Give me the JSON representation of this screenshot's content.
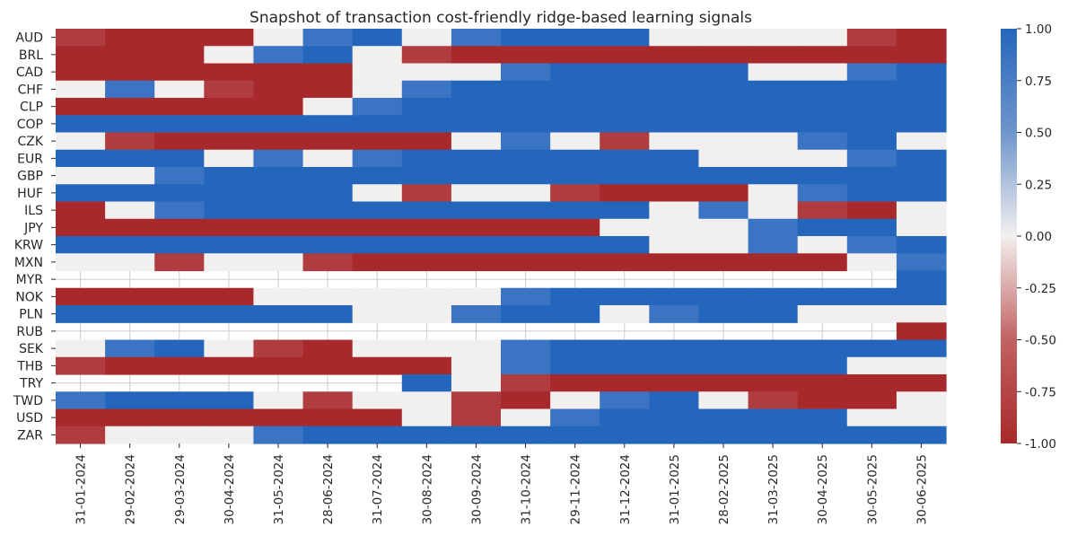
{
  "chart_data": {
    "type": "heatmap",
    "title": "Snapshot of transaction cost-friendly ridge-based learning signals",
    "xlabel": "",
    "ylabel": "",
    "x": [
      "31-01-2024",
      "29-02-2024",
      "29-03-2024",
      "30-04-2024",
      "31-05-2024",
      "28-06-2024",
      "31-07-2024",
      "30-08-2024",
      "30-09-2024",
      "31-10-2024",
      "29-11-2024",
      "31-12-2024",
      "31-01-2025",
      "28-02-2025",
      "31-03-2025",
      "30-04-2025",
      "30-05-2025",
      "30-06-2025"
    ],
    "y": [
      "AUD",
      "BRL",
      "CAD",
      "CHF",
      "CLP",
      "COP",
      "CZK",
      "EUR",
      "GBP",
      "HUF",
      "ILS",
      "JPY",
      "KRW",
      "MXN",
      "MYR",
      "NOK",
      "PLN",
      "RUB",
      "SEK",
      "THB",
      "TRY",
      "TWD",
      "USD",
      "ZAR"
    ],
    "values": [
      [
        -0.9,
        -1,
        -1,
        -1,
        0,
        0.9,
        1,
        0,
        0.9,
        1,
        1,
        1,
        0,
        0,
        0,
        0,
        -0.9,
        -1
      ],
      [
        -1,
        -1,
        -1,
        0,
        0.9,
        1,
        0,
        -0.9,
        -1,
        -1,
        -1,
        -1,
        -1,
        -1,
        -1,
        -1,
        -1,
        -1
      ],
      [
        -1,
        -1,
        -1,
        -1,
        -1,
        -1,
        0,
        0,
        0,
        0.9,
        1,
        1,
        1,
        1,
        0,
        0,
        0.9,
        1
      ],
      [
        0,
        0.9,
        0,
        -0.9,
        -1,
        -1,
        0,
        0.9,
        1,
        1,
        1,
        1,
        1,
        1,
        1,
        1,
        1,
        1
      ],
      [
        -1,
        -1,
        -1,
        -1,
        -1,
        0,
        0.9,
        1,
        1,
        1,
        1,
        1,
        1,
        1,
        1,
        1,
        1,
        1
      ],
      [
        1,
        1,
        1,
        1,
        1,
        1,
        1,
        1,
        1,
        1,
        1,
        1,
        1,
        1,
        1,
        1,
        1,
        1
      ],
      [
        0,
        -0.9,
        -1,
        -1,
        -1,
        -1,
        -1,
        -1,
        0,
        0.9,
        0,
        -0.9,
        0,
        0,
        0,
        0.9,
        1,
        0
      ],
      [
        1,
        1,
        1,
        0,
        0.9,
        0,
        0.9,
        1,
        1,
        1,
        1,
        1,
        1,
        0,
        0,
        0,
        0.9,
        1
      ],
      [
        0,
        0,
        0.9,
        1,
        1,
        1,
        1,
        1,
        1,
        1,
        1,
        1,
        1,
        1,
        1,
        1,
        1,
        1
      ],
      [
        1,
        1,
        1,
        1,
        1,
        1,
        0,
        -0.9,
        0,
        0,
        -0.9,
        -1,
        -1,
        -1,
        0,
        0.9,
        1,
        1
      ],
      [
        -1,
        0,
        0.9,
        1,
        1,
        1,
        1,
        1,
        1,
        1,
        1,
        1,
        0,
        0.9,
        0,
        -0.9,
        -1,
        0
      ],
      [
        -1,
        -1,
        -1,
        -1,
        -1,
        -1,
        -1,
        -1,
        -1,
        -1,
        -1,
        0,
        0,
        0,
        0.9,
        1,
        1,
        0
      ],
      [
        1,
        1,
        1,
        1,
        1,
        1,
        1,
        1,
        1,
        1,
        1,
        1,
        0,
        0,
        0.9,
        0,
        0.9,
        1
      ],
      [
        0,
        0,
        -0.9,
        0,
        0,
        -0.9,
        -1,
        -1,
        -1,
        -1,
        -1,
        -1,
        -1,
        -1,
        -1,
        -1,
        0,
        0.9
      ],
      [
        null,
        null,
        null,
        null,
        null,
        null,
        null,
        null,
        null,
        null,
        null,
        null,
        null,
        null,
        null,
        null,
        null,
        1
      ],
      [
        -1,
        -1,
        -1,
        -1,
        0,
        0,
        0,
        0,
        0,
        0.9,
        1,
        1,
        1,
        1,
        1,
        1,
        1,
        1
      ],
      [
        1,
        1,
        1,
        1,
        1,
        1,
        0,
        0,
        0.9,
        1,
        1,
        0,
        0.9,
        1,
        1,
        0,
        0,
        0
      ],
      [
        null,
        null,
        null,
        null,
        null,
        null,
        null,
        null,
        null,
        null,
        null,
        null,
        null,
        null,
        null,
        null,
        null,
        -1
      ],
      [
        0,
        0.9,
        1,
        0,
        -0.9,
        -1,
        0,
        0,
        0,
        0.9,
        1,
        1,
        1,
        1,
        1,
        1,
        1,
        1
      ],
      [
        -0.9,
        -1,
        -1,
        -1,
        -1,
        -1,
        -1,
        -1,
        0,
        0.9,
        1,
        1,
        1,
        1,
        1,
        1,
        0,
        0
      ],
      [
        null,
        null,
        null,
        null,
        null,
        null,
        null,
        1,
        0,
        -0.9,
        -1,
        -1,
        -1,
        -1,
        -1,
        -1,
        -1,
        -1
      ],
      [
        0.9,
        1,
        1,
        1,
        0,
        -0.9,
        0,
        0,
        -0.9,
        -1,
        0,
        0.9,
        1,
        0,
        -0.9,
        -1,
        -1,
        0
      ],
      [
        -1,
        -1,
        -1,
        -1,
        -1,
        -1,
        -1,
        0,
        -0.9,
        0,
        0.9,
        1,
        1,
        1,
        1,
        1,
        0,
        0
      ],
      [
        -0.9,
        0,
        0,
        0,
        0.9,
        1,
        1,
        1,
        1,
        1,
        1,
        1,
        1,
        1,
        1,
        1,
        1,
        1
      ]
    ],
    "colorbar": {
      "min": -1.0,
      "max": 1.0,
      "ticks": [
        "1.00",
        "0.75",
        "0.50",
        "0.25",
        "0.00",
        "-0.25",
        "-0.50",
        "-0.75",
        "-1.00"
      ],
      "colormap": "vlag_r",
      "low_color": "#a8292b",
      "mid_color": "#f2f0ef",
      "high_color": "#2566bd"
    },
    "grid": true
  }
}
